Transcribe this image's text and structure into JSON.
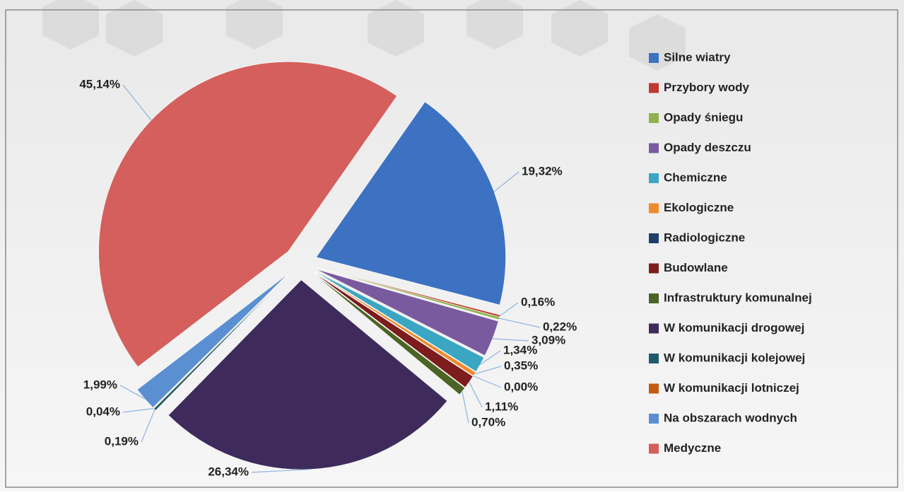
{
  "chart_data": {
    "type": "pie",
    "categories": [
      "Silne wiatry",
      "Przybory wody",
      "Opady śniegu",
      "Opady deszczu",
      "Chemiczne",
      "Ekologiczne",
      "Radiologiczne",
      "Budowlane",
      "Infrastruktury komunalnej",
      "W komunikacji drogowej",
      "W komunikacji kolejowej",
      "W komunikacji lotniczej",
      "Na obszarach wodnych",
      "Medyczne"
    ],
    "values": [
      19.32,
      0.16,
      0.22,
      3.09,
      1.34,
      0.35,
      0.0,
      1.11,
      0.7,
      26.34,
      0.19,
      0.04,
      1.99,
      45.14
    ],
    "value_labels": [
      "19,32%",
      "0,16%",
      "0,22%",
      "3,09%",
      "1,34%",
      "0,35%",
      "0,00%",
      "1,11%",
      "0,70%",
      "26,34%",
      "0,19%",
      "0,04%",
      "1,99%",
      "45,14%"
    ],
    "colors": [
      "#3d72c2",
      "#c0392f",
      "#8fb24e",
      "#7a5a9e",
      "#3aa6c2",
      "#f08a2c",
      "#1f3f6b",
      "#7d1c1c",
      "#4c6423",
      "#3e2b5c",
      "#1f5a6a",
      "#c55a11",
      "#5a8fd2",
      "#d45f5c"
    ],
    "legend": "right"
  }
}
